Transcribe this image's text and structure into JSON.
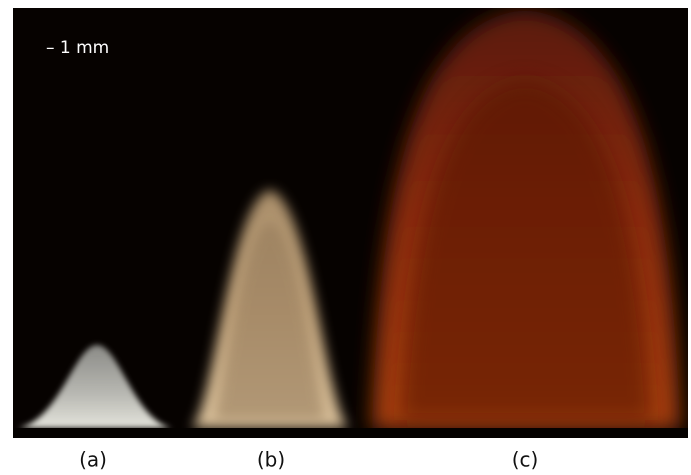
{
  "scale_bar": "– 1 mm",
  "labels": [
    "(a)",
    "(b)",
    "(c)"
  ]
}
